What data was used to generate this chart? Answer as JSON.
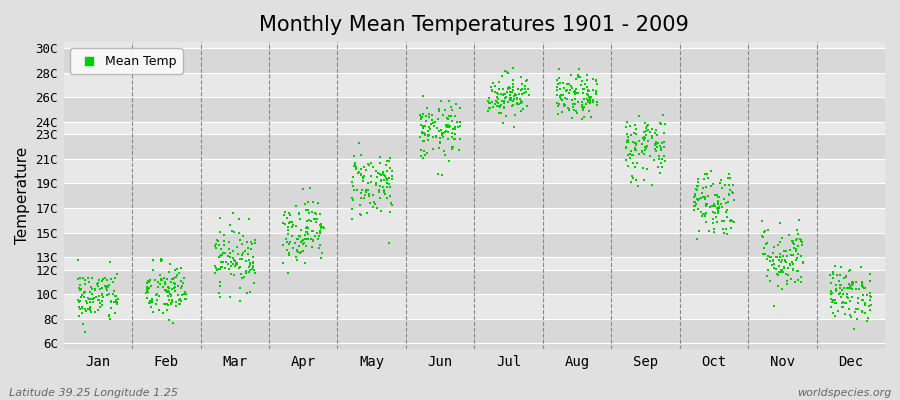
{
  "title": "Monthly Mean Temperatures 1901 - 2009",
  "ylabel": "Temperature",
  "xlabel_labels": [
    "Jan",
    "Feb",
    "Mar",
    "Apr",
    "May",
    "Jun",
    "Jul",
    "Aug",
    "Sep",
    "Oct",
    "Nov",
    "Dec"
  ],
  "ytick_positions": [
    6,
    8,
    10,
    12,
    13,
    15,
    17,
    19,
    21,
    23,
    24,
    26,
    28,
    30
  ],
  "ytick_labels": [
    "6C",
    "8C",
    "10C",
    "12C",
    "13C",
    "15C",
    "17C",
    "19C",
    "21C",
    "23C",
    "24C",
    "26C",
    "28C",
    "30C"
  ],
  "ylim": [
    5.5,
    30.5
  ],
  "dot_color": "#00cc00",
  "dot_size": 3,
  "background_color": "#e0e0e0",
  "band_colors": [
    "#d8d8d8",
    "#e8e8e8"
  ],
  "grid_color": "#ffffff",
  "dashed_line_color": "#888888",
  "footer_left": "Latitude 39.25 Longitude 1.25",
  "footer_right": "worldspecies.org",
  "legend_label": "Mean Temp",
  "title_fontsize": 15,
  "axis_fontsize": 10,
  "tick_fontsize": 9,
  "monthly_means": [
    9.8,
    10.2,
    13.0,
    15.2,
    19.0,
    23.2,
    26.2,
    26.0,
    22.0,
    17.5,
    13.0,
    10.0
  ],
  "monthly_stds": [
    1.1,
    1.2,
    1.3,
    1.3,
    1.4,
    1.2,
    0.9,
    0.9,
    1.4,
    1.4,
    1.4,
    1.1
  ],
  "n_years": 109
}
